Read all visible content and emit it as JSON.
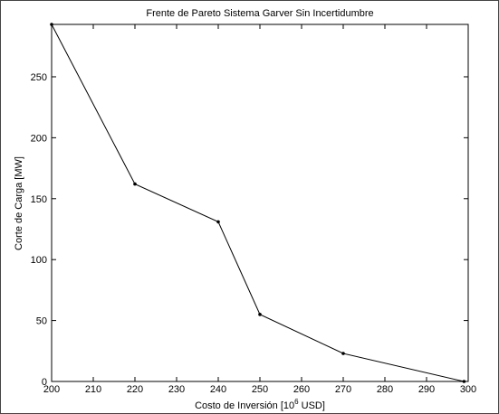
{
  "chart_data": {
    "type": "line",
    "title": "Frente de Pareto Sistema Garver Sin Incertidumbre",
    "x_label": {
      "text": "Costo de Inversión [10",
      "superscript": "6",
      "suffix": " USD]"
    },
    "y_label": "Corte de Carga [MW]",
    "x": [
      200,
      220,
      240,
      250,
      270,
      299
    ],
    "series": [
      {
        "color": "#000000",
        "values": [
          293,
          162,
          131,
          55,
          23,
          0
        ]
      }
    ],
    "xlim": [
      200,
      300
    ],
    "xticks": [
      200,
      210,
      220,
      230,
      240,
      250,
      260,
      270,
      280,
      290,
      300
    ],
    "ylim": [
      0,
      293
    ],
    "yticks": [
      0,
      50,
      100,
      150,
      200,
      250
    ],
    "grid": false
  }
}
